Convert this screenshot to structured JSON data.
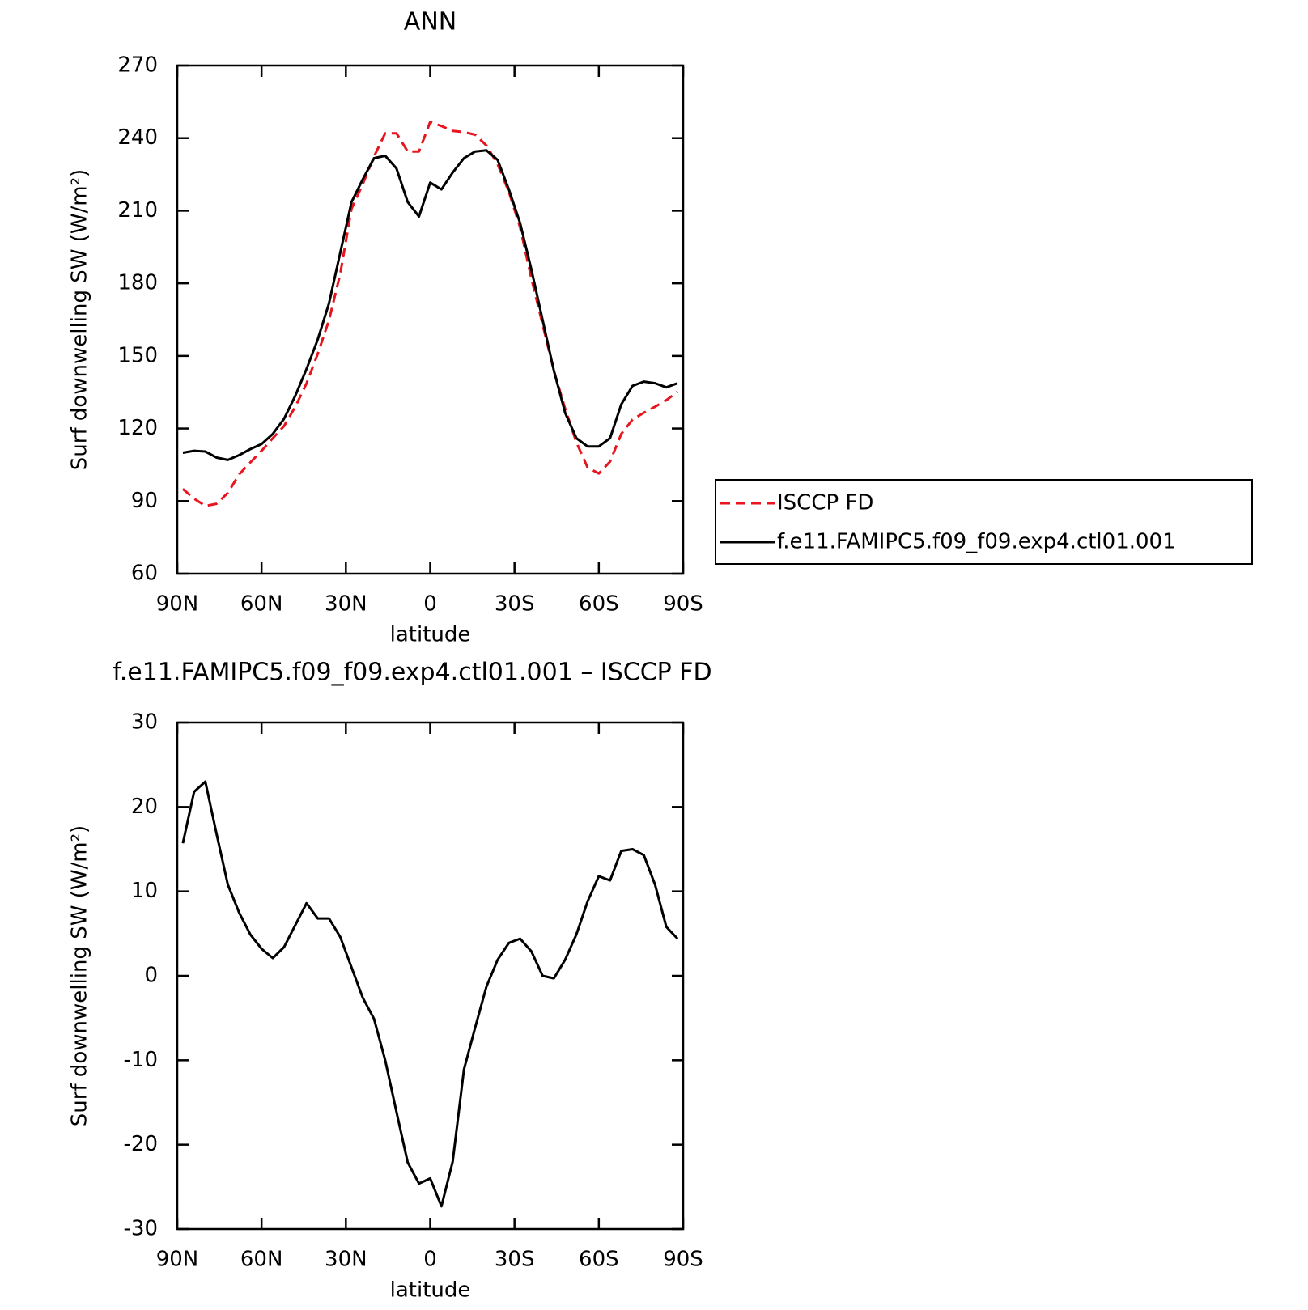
{
  "chart_data": [
    {
      "type": "line",
      "title": "ANN",
      "xlabel": "latitude",
      "ylabel": "Surf downwelling SW (W/m²)",
      "x": [
        88,
        84,
        80,
        76,
        72,
        68,
        64,
        60,
        56,
        52,
        48,
        44,
        40,
        36,
        32,
        28,
        24,
        20,
        16,
        12,
        8,
        4,
        0,
        -4,
        -8,
        -12,
        -16,
        -20,
        -24,
        -28,
        -32,
        -36,
        -40,
        -44,
        -48,
        -52,
        -56,
        -60,
        -64,
        -68,
        -72,
        -76,
        -80,
        -84,
        -88
      ],
      "series": [
        {
          "name": "ISCCP FD",
          "color": "#e8141e",
          "linestyle": "dashed",
          "values": [
            95,
            91,
            88,
            88.9,
            93.4,
            101,
            106,
            110.8,
            116,
            121,
            129,
            138.6,
            150.9,
            164.8,
            184,
            210.8,
            221,
            232.4,
            242,
            242,
            234.5,
            234.5,
            246.7,
            245,
            243,
            242.5,
            241.4,
            237,
            229.2,
            217.8,
            203.1,
            182,
            163,
            143.9,
            128.2,
            114.3,
            103.9,
            101.4,
            106.3,
            117.8,
            123.7,
            126.5,
            129,
            131.7,
            135.2
          ]
        },
        {
          "name": "f.e11.FAMIPC5.f09_f09.exp4.ctl01.001",
          "color": "#000000",
          "linestyle": "solid",
          "values": [
            110,
            110.8,
            110.5,
            108,
            107,
            109,
            111.5,
            113.6,
            117.8,
            124,
            133.5,
            144.6,
            156.8,
            171.8,
            192.7,
            213.6,
            223,
            231.7,
            232.7,
            227.5,
            213.6,
            207.6,
            221.6,
            218.8,
            225.8,
            231.7,
            234.5,
            235,
            231,
            218.8,
            204.9,
            185.7,
            164.8,
            143.9,
            126.5,
            116,
            112.6,
            112.6,
            116,
            130,
            137.6,
            139.4,
            138.7,
            137,
            138.7
          ]
        }
      ],
      "xlim": [
        90,
        -90
      ],
      "xticks": [
        {
          "value": 90,
          "label": "90N"
        },
        {
          "value": 60,
          "label": "60N"
        },
        {
          "value": 30,
          "label": "30N"
        },
        0,
        {
          "value": -30,
          "label": "30S"
        },
        {
          "value": -60,
          "label": "60S"
        },
        {
          "value": -90,
          "label": "90S"
        }
      ],
      "ylim": [
        60,
        270
      ],
      "yticks": [
        60,
        90,
        120,
        150,
        180,
        210,
        240,
        270
      ],
      "legend": "right"
    },
    {
      "type": "line",
      "title": "f.e11.FAMIPC5.f09_f09.exp4.ctl01.001 – ISCCP FD",
      "xlabel": "latitude",
      "ylabel": "Surf downwelling SW (W/m²)",
      "x": [
        88,
        84,
        80,
        76,
        72,
        68,
        64,
        60,
        56,
        52,
        48,
        44,
        40,
        36,
        32,
        28,
        24,
        20,
        16,
        12,
        8,
        4,
        0,
        -4,
        -8,
        -12,
        -16,
        -20,
        -24,
        -28,
        -32,
        -36,
        -40,
        -44,
        -48,
        -52,
        -56,
        -60,
        -64,
        -68,
        -72,
        -76,
        -80,
        -84,
        -88
      ],
      "series": [
        {
          "color": "#000000",
          "linestyle": "solid",
          "values": [
            15.7,
            21.8,
            23,
            16.8,
            10.8,
            7.5,
            4.9,
            3.2,
            2.1,
            3.4,
            6,
            8.6,
            6.8,
            6.8,
            4.6,
            1,
            -2.6,
            -5.1,
            -10,
            -16.1,
            -22.1,
            -24.6,
            -24,
            -27.3,
            -22,
            -11.1,
            -6.1,
            -1.3,
            1.9,
            3.9,
            4.4,
            2.9,
            0,
            -0.3,
            1.9,
            4.9,
            8.8,
            11.8,
            11.3,
            14.8,
            15,
            14.3,
            10.8,
            5.8,
            4.4
          ]
        }
      ],
      "xlim": [
        90,
        -90
      ],
      "xticks": [
        {
          "value": 90,
          "label": "90N"
        },
        {
          "value": 60,
          "label": "60N"
        },
        {
          "value": 30,
          "label": "30N"
        },
        0,
        {
          "value": -30,
          "label": "30S"
        },
        {
          "value": -60,
          "label": "60S"
        },
        {
          "value": -90,
          "label": "90S"
        }
      ],
      "ylim": [
        -30,
        30
      ],
      "yticks": [
        -30,
        -20,
        -10,
        0,
        10,
        20,
        30
      ]
    }
  ]
}
